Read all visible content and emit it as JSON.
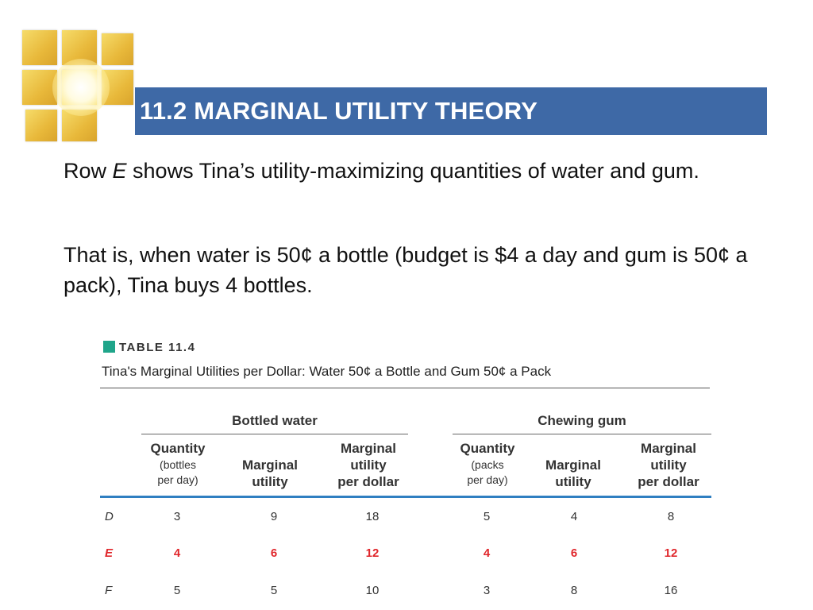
{
  "slide": {
    "title": "11.2 MARGINAL UTILITY THEORY",
    "para1": {
      "pre": "Row ",
      "italic": "E",
      "post": " shows Tina’s utility-maximizing quantities of water and gum."
    },
    "para2": "That is, when water is 50¢ a bottle (budget is $4 a day and gum is 50¢ a pack), Tina buys 4 bottles."
  },
  "table": {
    "label": "TABLE 11.4",
    "caption": "Tina's Marginal Utilities per Dollar: Water 50¢ a Bottle and Gum 50¢ a Pack",
    "groups": [
      "Bottled water",
      "Chewing gum"
    ],
    "headers": {
      "water_qty": [
        "Quantity",
        "(bottles",
        "per day)"
      ],
      "water_mu": [
        "Marginal",
        "utility"
      ],
      "water_mupd": [
        "Marginal",
        "utility",
        "per dollar"
      ],
      "gum_qty": [
        "Quantity",
        "(packs",
        "per day)"
      ],
      "gum_mu": [
        "Marginal",
        "utility"
      ],
      "gum_mupd": [
        "Marginal",
        "utility",
        "per dollar"
      ]
    },
    "rows": [
      {
        "label": "D",
        "values": [
          "3",
          "9",
          "18",
          "5",
          "4",
          "8"
        ]
      },
      {
        "label": "E",
        "values": [
          "4",
          "6",
          "12",
          "4",
          "6",
          "12"
        ]
      },
      {
        "label": "F",
        "values": [
          "5",
          "5",
          "10",
          "3",
          "8",
          "16"
        ]
      }
    ],
    "highlight_color": "#e0262b",
    "accent_color": "#1fa58a",
    "rule_color": "#2f7fc1"
  },
  "theme": {
    "title_bar_color": "#3e69a6",
    "logo_color": "#e8b83a"
  }
}
